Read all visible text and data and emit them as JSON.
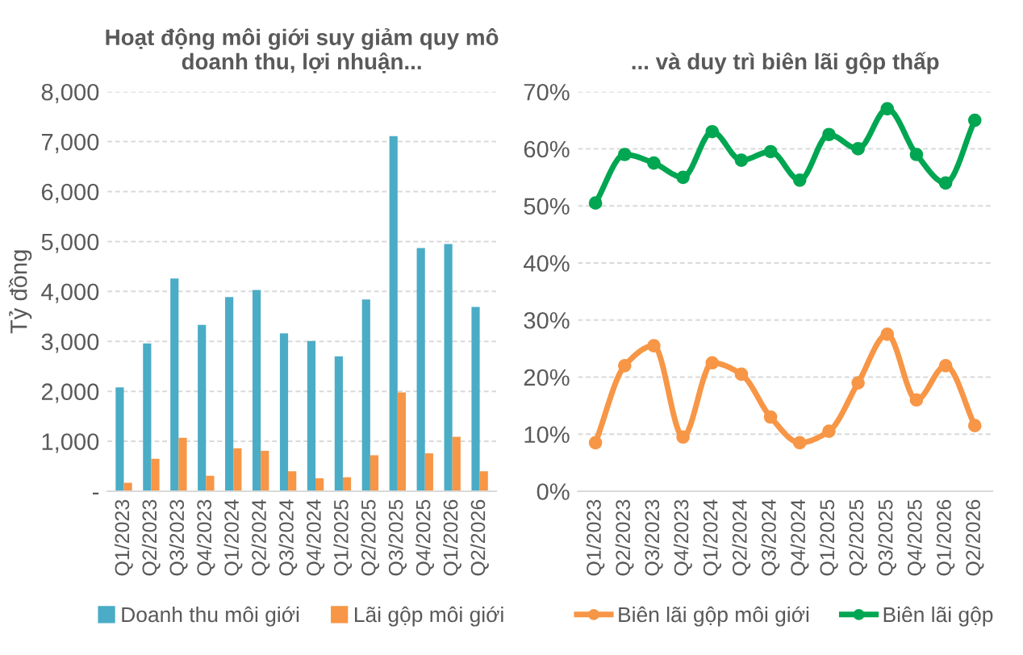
{
  "chart_data": [
    {
      "type": "bar",
      "title": "Hoạt động môi giới suy giảm quy mô\ndoanh thu, lợi nhuận...",
      "ylabel": "Tỷ đồng",
      "categories": [
        "Q1/2023",
        "Q2/2023",
        "Q3/2023",
        "Q4/2023",
        "Q1/2024",
        "Q2/2024",
        "Q3/2024",
        "Q4/2024",
        "Q1/2025",
        "Q2/2025",
        "Q3/2025",
        "Q4/2025",
        "Q1/2026",
        "Q2/2026"
      ],
      "series": [
        {
          "name": "Doanh thu môi giới",
          "color": "#4bacc6",
          "values": [
            2080,
            2960,
            4260,
            3330,
            3890,
            4030,
            3160,
            3010,
            2700,
            3840,
            7110,
            4870,
            4950,
            3690
          ]
        },
        {
          "name": "Lãi gộp môi giới",
          "color": "#f79646",
          "values": [
            170,
            650,
            1070,
            310,
            860,
            810,
            400,
            260,
            280,
            720,
            1980,
            760,
            1090,
            400
          ]
        }
      ],
      "ylim": [
        0,
        8000
      ],
      "yticks": [
        {
          "value": 0,
          "label": "-"
        },
        {
          "value": 1000,
          "label": "1,000"
        },
        {
          "value": 2000,
          "label": "2,000"
        },
        {
          "value": 3000,
          "label": "3,000"
        },
        {
          "value": 4000,
          "label": "4,000"
        },
        {
          "value": 5000,
          "label": "5,000"
        },
        {
          "value": 6000,
          "label": "6,000"
        },
        {
          "value": 7000,
          "label": "7,000"
        },
        {
          "value": 8000,
          "label": "8,000"
        }
      ],
      "grid": "y",
      "legend": "bottom"
    },
    {
      "type": "line",
      "title": "... và duy trì biên lãi gộp thấp",
      "categories": [
        "Q1/2023",
        "Q2/2023",
        "Q3/2023",
        "Q4/2023",
        "Q1/2024",
        "Q2/2024",
        "Q3/2024",
        "Q4/2024",
        "Q1/2025",
        "Q2/2025",
        "Q3/2025",
        "Q4/2025",
        "Q1/2026",
        "Q2/2026"
      ],
      "series": [
        {
          "name": "Biên lãi gộp môi giới",
          "color": "#f79646",
          "values": [
            8.5,
            22,
            25.5,
            9.5,
            22.5,
            20.5,
            13,
            8.5,
            10.5,
            19,
            27.5,
            16,
            22,
            11.5
          ]
        },
        {
          "name": "Biên lãi gộp",
          "color": "#00a651",
          "values": [
            50.5,
            59,
            57.5,
            55,
            63,
            58,
            59.5,
            54.5,
            62.5,
            60,
            67,
            59,
            54,
            65
          ]
        }
      ],
      "ylim": [
        0,
        70
      ],
      "yticks": [
        {
          "value": 0,
          "label": "0%"
        },
        {
          "value": 10,
          "label": "10%"
        },
        {
          "value": 20,
          "label": "20%"
        },
        {
          "value": 30,
          "label": "30%"
        },
        {
          "value": 40,
          "label": "40%"
        },
        {
          "value": 50,
          "label": "50%"
        },
        {
          "value": 60,
          "label": "60%"
        },
        {
          "value": 70,
          "label": "70%"
        }
      ],
      "grid": "y",
      "legend": "bottom",
      "marker": "circle",
      "line_style": "solid"
    }
  ]
}
